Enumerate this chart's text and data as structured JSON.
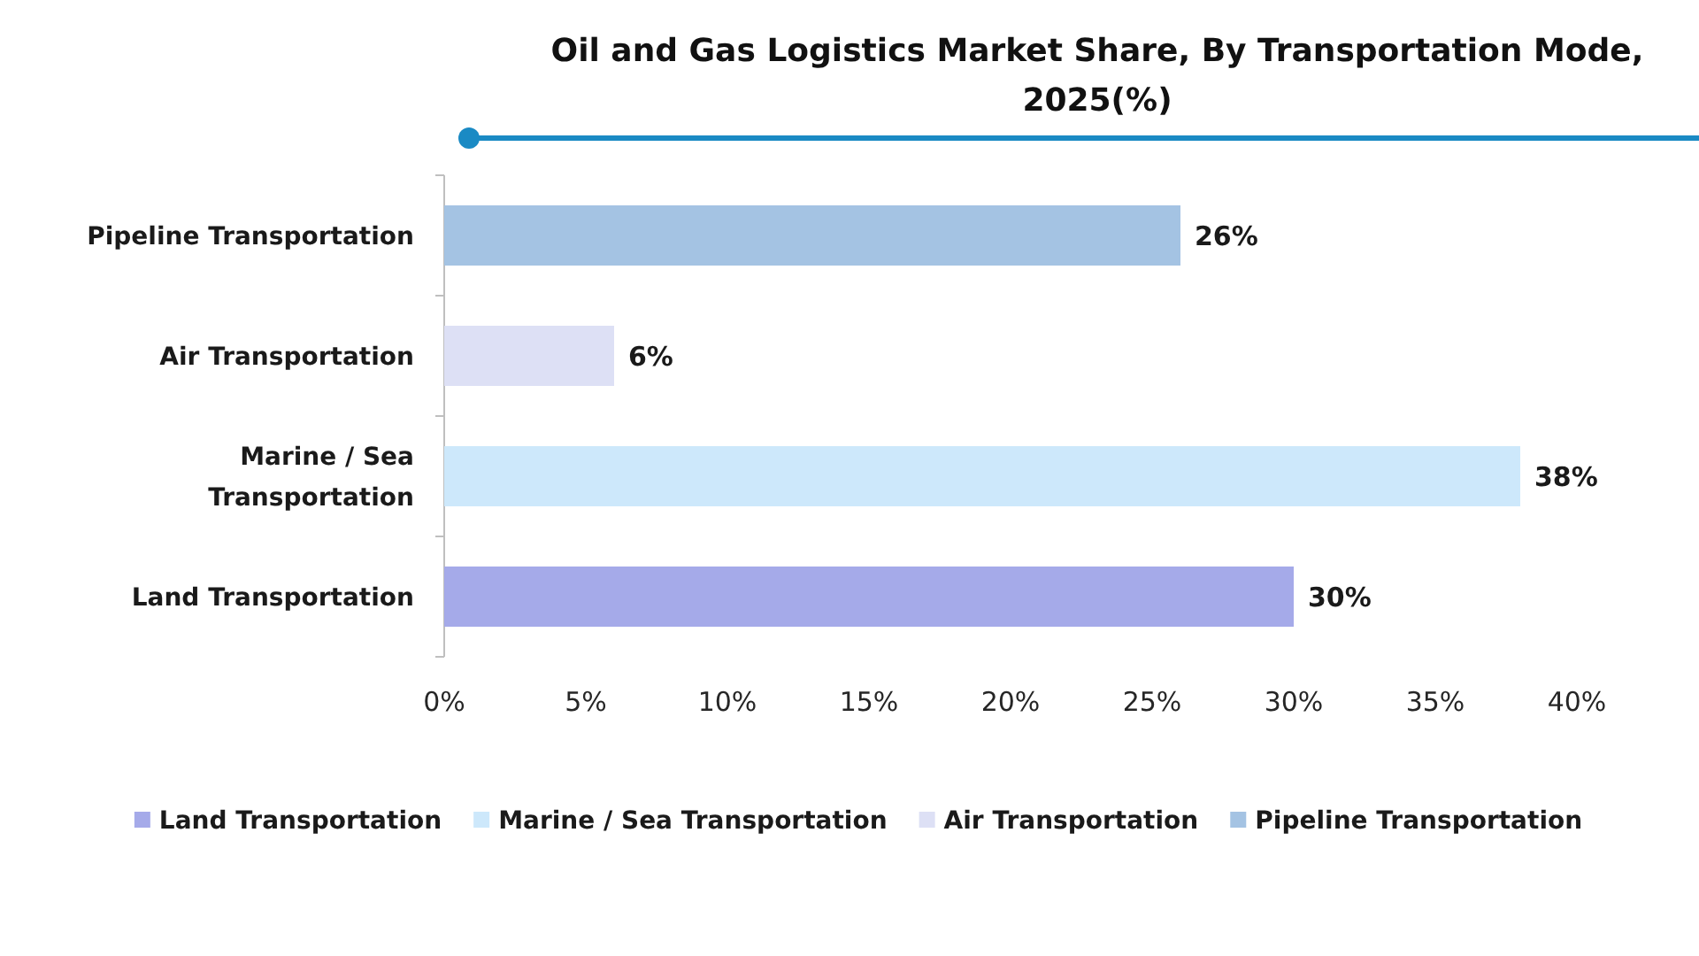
{
  "chart_data": {
    "type": "bar",
    "orientation": "horizontal",
    "title": "Oil and Gas Logistics Market Share, By Transportation Mode, 2025(%)",
    "categories": [
      "Pipeline Transportation",
      "Air Transportation",
      "Marine / Sea Transportation",
      "Land Transportation"
    ],
    "series": [
      {
        "name": "Land Transportation",
        "color": "#a5aae9",
        "values": [
          null,
          null,
          null,
          30
        ],
        "value_labels": [
          null,
          null,
          null,
          "30%"
        ]
      },
      {
        "name": "Marine / Sea Transportation",
        "color": "#cde8fb",
        "values": [
          null,
          null,
          38,
          null
        ],
        "value_labels": [
          null,
          null,
          "38%",
          null
        ]
      },
      {
        "name": "Air Transportation",
        "color": "#dde0f5",
        "values": [
          null,
          6,
          null,
          null
        ],
        "value_labels": [
          null,
          "6%",
          null,
          null
        ]
      },
      {
        "name": "Pipeline Transportation",
        "color": "#a4c3e3",
        "values": [
          26,
          null,
          null,
          null
        ],
        "value_labels": [
          "26%",
          null,
          null,
          null
        ]
      }
    ],
    "xlim": [
      0,
      40
    ],
    "xticks": [
      {
        "value": 0,
        "label": "0%"
      },
      {
        "value": 5,
        "label": "5%"
      },
      {
        "value": 10,
        "label": "10%"
      },
      {
        "value": 15,
        "label": "15%"
      },
      {
        "value": 20,
        "label": "20%"
      },
      {
        "value": 25,
        "label": "25%"
      },
      {
        "value": 30,
        "label": "30%"
      },
      {
        "value": 35,
        "label": "35%"
      },
      {
        "value": 40,
        "label": "40%"
      }
    ],
    "legend": "bottom"
  }
}
